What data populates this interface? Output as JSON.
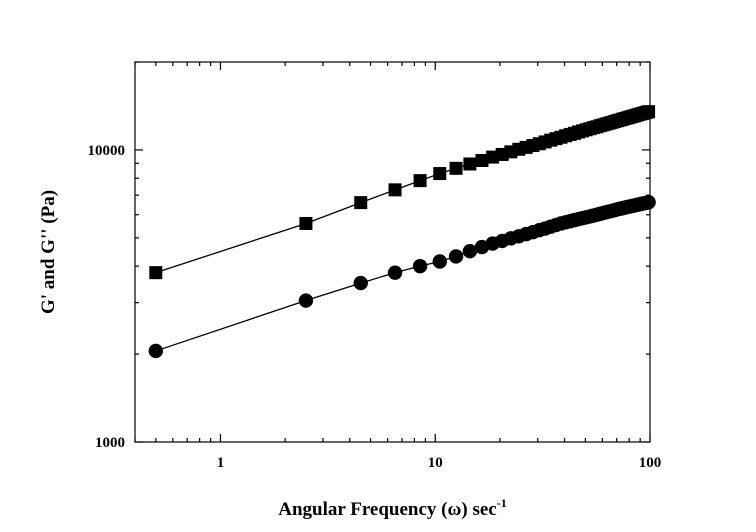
{
  "chart_data": {
    "type": "scatter",
    "title": "",
    "xlabel": "Angular Frequency (ω) sec",
    "xlabel_superscript": "-1",
    "ylabel": "G' and G'' (Pa)",
    "x_scale": "log",
    "y_scale": "log",
    "xlim": [
      0.4,
      100
    ],
    "ylim": [
      1000,
      20000
    ],
    "x_ticks": [
      {
        "value": 1,
        "label": "1"
      },
      {
        "value": 10,
        "label": "10"
      },
      {
        "value": 100,
        "label": "100"
      }
    ],
    "y_ticks": [
      {
        "value": 1000,
        "label": "1000"
      },
      {
        "value": 10000,
        "label": "10000"
      }
    ],
    "grid": false,
    "legend": "none",
    "series": [
      {
        "marker": "square",
        "color": "#000000",
        "points": [
          [
            0.5,
            3800
          ],
          [
            2.5,
            5600
          ],
          [
            4.5,
            6600
          ],
          [
            6.5,
            7300
          ],
          [
            8.5,
            7850
          ],
          [
            10.5,
            8300
          ],
          [
            12.5,
            8650
          ],
          [
            14.5,
            8950
          ],
          [
            16.5,
            9200
          ],
          [
            18.5,
            9450
          ],
          [
            20.5,
            9650
          ],
          [
            22.5,
            9850
          ],
          [
            24.5,
            10050
          ],
          [
            26.5,
            10200
          ],
          [
            28.5,
            10350
          ],
          [
            30.5,
            10500
          ],
          [
            32.5,
            10650
          ],
          [
            34.5,
            10800
          ],
          [
            36.5,
            10930
          ],
          [
            38.5,
            11050
          ],
          [
            40.5,
            11180
          ],
          [
            42.5,
            11300
          ],
          [
            44.5,
            11400
          ],
          [
            46.5,
            11520
          ],
          [
            48.5,
            11620
          ],
          [
            50.5,
            11720
          ],
          [
            52.5,
            11820
          ],
          [
            54.5,
            11920
          ],
          [
            56.5,
            12000
          ],
          [
            58.5,
            12100
          ],
          [
            60.5,
            12180
          ],
          [
            62.5,
            12270
          ],
          [
            64.5,
            12350
          ],
          [
            66.5,
            12430
          ],
          [
            68.5,
            12510
          ],
          [
            70.5,
            12590
          ],
          [
            72.5,
            12660
          ],
          [
            74.5,
            12740
          ],
          [
            76.5,
            12810
          ],
          [
            78.5,
            12880
          ],
          [
            80.5,
            12950
          ],
          [
            82.5,
            13020
          ],
          [
            84.5,
            13080
          ],
          [
            86.5,
            13150
          ],
          [
            88.5,
            13210
          ],
          [
            90.5,
            13280
          ],
          [
            92.5,
            13340
          ],
          [
            94.5,
            13400
          ],
          [
            96.5,
            13460
          ],
          [
            98.5,
            13520
          ]
        ]
      },
      {
        "marker": "circle",
        "color": "#000000",
        "points": [
          [
            0.5,
            2050
          ],
          [
            2.5,
            3050
          ],
          [
            4.5,
            3500
          ],
          [
            6.5,
            3800
          ],
          [
            8.5,
            4000
          ],
          [
            10.5,
            4150
          ],
          [
            12.5,
            4320
          ],
          [
            14.5,
            4500
          ],
          [
            16.5,
            4650
          ],
          [
            18.5,
            4780
          ],
          [
            20.5,
            4880
          ],
          [
            22.5,
            4980
          ],
          [
            24.5,
            5060
          ],
          [
            26.5,
            5150
          ],
          [
            28.5,
            5230
          ],
          [
            30.5,
            5310
          ],
          [
            32.5,
            5380
          ],
          [
            34.5,
            5460
          ],
          [
            36.5,
            5530
          ],
          [
            38.5,
            5600
          ],
          [
            40.5,
            5650
          ],
          [
            42.5,
            5700
          ],
          [
            44.5,
            5750
          ],
          [
            46.5,
            5800
          ],
          [
            48.5,
            5840
          ],
          [
            50.5,
            5880
          ],
          [
            52.5,
            5920
          ],
          [
            54.5,
            5960
          ],
          [
            56.5,
            6000
          ],
          [
            58.5,
            6040
          ],
          [
            60.5,
            6080
          ],
          [
            62.5,
            6120
          ],
          [
            64.5,
            6150
          ],
          [
            66.5,
            6190
          ],
          [
            68.5,
            6220
          ],
          [
            70.5,
            6260
          ],
          [
            72.5,
            6290
          ],
          [
            74.5,
            6320
          ],
          [
            76.5,
            6350
          ],
          [
            78.5,
            6380
          ],
          [
            80.5,
            6400
          ],
          [
            82.5,
            6430
          ],
          [
            84.5,
            6450
          ],
          [
            86.5,
            6480
          ],
          [
            88.5,
            6500
          ],
          [
            90.5,
            6530
          ],
          [
            92.5,
            6550
          ],
          [
            94.5,
            6570
          ],
          [
            96.5,
            6590
          ],
          [
            98.5,
            6620
          ]
        ]
      }
    ]
  }
}
